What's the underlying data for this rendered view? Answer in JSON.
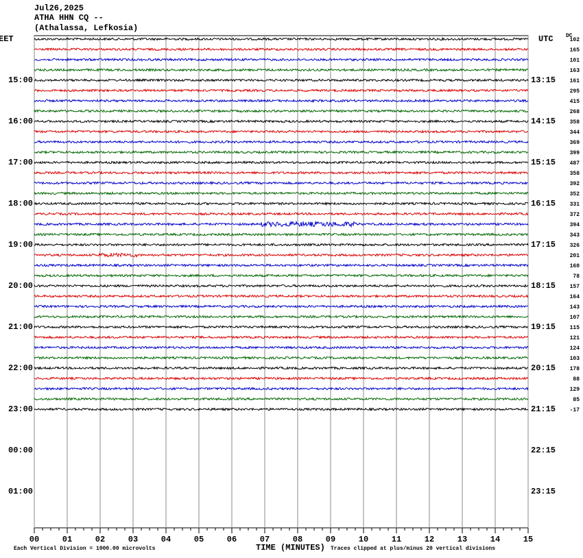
{
  "chart_data": {
    "type": "helicorder",
    "title_lines": [
      "Jul26,2025",
      "ATHA HHN CQ --",
      "(Athalassa, Lefkosia)"
    ],
    "left_labels": [
      "EET",
      "15:00",
      "16:00",
      "17:00",
      "18:00",
      "19:00",
      "20:00",
      "21:00",
      "22:00",
      "23:00",
      "00:00",
      "01:00"
    ],
    "right_labels": [
      "UTC",
      "13:15",
      "14:15",
      "15:15",
      "16:15",
      "17:15",
      "18:15",
      "19:15",
      "20:15",
      "21:15",
      "22:15",
      "23:15"
    ],
    "dc_label": "DC",
    "dc_values": [
      102,
      165,
      101,
      163,
      161,
      295,
      415,
      268,
      358,
      344,
      369,
      399,
      487,
      358,
      392,
      352,
      331,
      372,
      394,
      343,
      326,
      201,
      160,
      78,
      157,
      164,
      143,
      107,
      115,
      121,
      124,
      103,
      178,
      88,
      129,
      85,
      -17
    ],
    "trace_colors": [
      "#000000",
      "#dd0000",
      "#0000cc",
      "#006600"
    ],
    "xlim": [
      0,
      15
    ],
    "xticks": [
      {
        "value": 0,
        "label": "00"
      },
      {
        "value": 1,
        "label": "01"
      },
      {
        "value": 2,
        "label": "02"
      },
      {
        "value": 3,
        "label": "03"
      },
      {
        "value": 4,
        "label": "04"
      },
      {
        "value": 5,
        "label": "05"
      },
      {
        "value": 6,
        "label": "06"
      },
      {
        "value": 7,
        "label": "07"
      },
      {
        "value": 8,
        "label": "08"
      },
      {
        "value": 9,
        "label": "09"
      },
      {
        "value": 10,
        "label": "10"
      },
      {
        "value": 11,
        "label": "11"
      },
      {
        "value": 12,
        "label": "12"
      },
      {
        "value": 13,
        "label": "13"
      },
      {
        "value": 14,
        "label": "14"
      },
      {
        "value": 15,
        "label": "15"
      }
    ],
    "xlabel": "TIME (MINUTES)",
    "footnote_left": "Each Vertical Division = 1000.00 microvolts",
    "footnote_right": "Traces clipped at plus/minus 20 vertical divisions",
    "grid": true
  }
}
